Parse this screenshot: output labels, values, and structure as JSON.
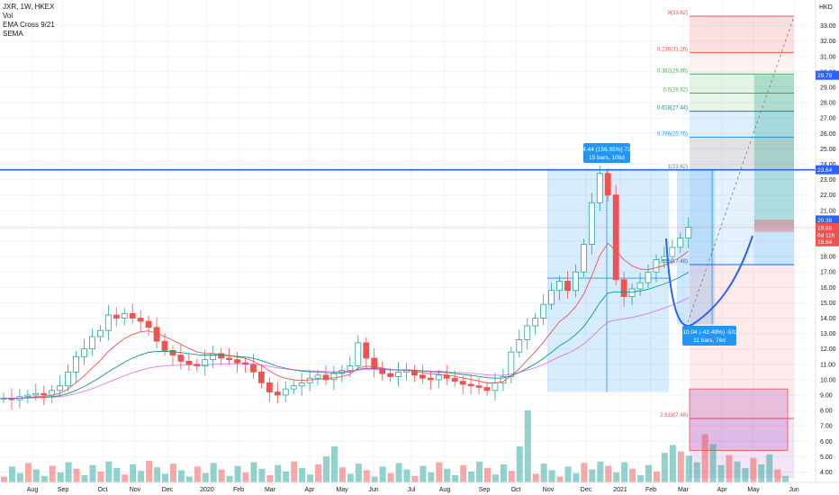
{
  "header": {
    "symbol_line": "JXR, 1W, HKEX",
    "studies": [
      "Vol",
      "EMA Cross 9/21",
      "SEMA"
    ]
  },
  "price_scale": {
    "currency": "HKD",
    "ticks": [
      "33.00",
      "32.00",
      "31.00",
      "30.00",
      "29.00",
      "28.00",
      "27.00",
      "26.00",
      "25.00",
      "24.00",
      "23.00",
      "22.00",
      "21.00",
      "20.00",
      "19.00",
      "18.00",
      "17.00",
      "16.00",
      "15.00",
      "14.00",
      "13.00",
      "12.00",
      "11.00",
      "10.00",
      "9.00",
      "8.00",
      "7.00",
      "6.00",
      "5.00",
      "4.00"
    ],
    "tags": [
      {
        "name": "tag-29",
        "text": "29.78",
        "color": "#2962ff"
      },
      {
        "name": "tag-2364",
        "text": "23.64",
        "color": "#2962ff"
      },
      {
        "name": "tag-2038",
        "text": "20.38",
        "color": "#2962ff"
      },
      {
        "name": "tag-1988",
        "text": "19.88",
        "color": "#ef5350"
      },
      {
        "name": "tag-6d11h",
        "text": "6d 11h",
        "color": "#ef5350"
      },
      {
        "name": "tag-1964",
        "text": "19.64",
        "color": "#ef5350"
      }
    ]
  },
  "time_axis": {
    "labels": [
      "Aug",
      "Sep",
      "Oct",
      "Nov",
      "Dec",
      "2020",
      "Feb",
      "Mar",
      "Apr",
      "May",
      "Jun",
      "Jul",
      "Aug",
      "Sep",
      "Oct",
      "Nov",
      "Dec",
      "2021",
      "Feb",
      "Mar",
      "Apr",
      "May",
      "Jun"
    ]
  },
  "fib_levels": [
    {
      "name": "fib-0",
      "text": "0(33.62)",
      "color": "#ef5350"
    },
    {
      "name": "fib-0236",
      "text": "0.236(31.26)",
      "color": "#ef5350"
    },
    {
      "name": "fib-0382",
      "text": "0.382(29.86)",
      "color": "#4caf50"
    },
    {
      "name": "fib-05",
      "text": "0.5(28.62)",
      "color": "#4caf50"
    },
    {
      "name": "fib-0618",
      "text": "0.618(27.44)",
      "color": "#089981"
    },
    {
      "name": "fib-0786",
      "text": "0.786(25.76)",
      "color": "#2196f3"
    },
    {
      "name": "fib-1",
      "text": "1(23.62)",
      "color": "#787b86"
    },
    {
      "name": "fib-1618",
      "text": "1.618(17.48)",
      "color": "#2962ff"
    },
    {
      "name": "fib-2618",
      "text": "2.618(7.48)",
      "color": "#ef5350"
    }
  ],
  "measure_up": {
    "line1": "14.44 (156.95%) 722",
    "line2": "15 bars, 106d"
  },
  "measure_down": {
    "line1": "-10.04 (-42.49%) -502",
    "line2": "11 bars, 76d"
  },
  "colors": {
    "up": "#26a69a",
    "down": "#ef5350",
    "accent": "#2962ff"
  },
  "chart_data": {
    "type": "candlestick",
    "x": [
      "2019-08",
      "2019-09",
      "2019-10",
      "2019-11",
      "2019-12",
      "2020-01",
      "2020-02",
      "2020-03",
      "2020-04",
      "2020-05",
      "2020-06",
      "2020-07",
      "2020-08",
      "2020-09",
      "2020-10",
      "2020-11",
      "2020-12",
      "2021-01",
      "2021-02",
      "2021-03",
      "2021-04",
      "2021-05"
    ],
    "close_approx": [
      8.8,
      9.5,
      13.0,
      14.0,
      11.0,
      11.6,
      11.0,
      9.5,
      9.6,
      9.8,
      10.2,
      10.5,
      10.2,
      9.8,
      9.3,
      12.0,
      15.5,
      16.5,
      20.0,
      15.5,
      18.5,
      19.8
    ],
    "ylim": [
      3.5,
      34
    ],
    "indicators": [
      "Vol",
      "EMA Cross 9/21",
      "SEMA"
    ]
  }
}
